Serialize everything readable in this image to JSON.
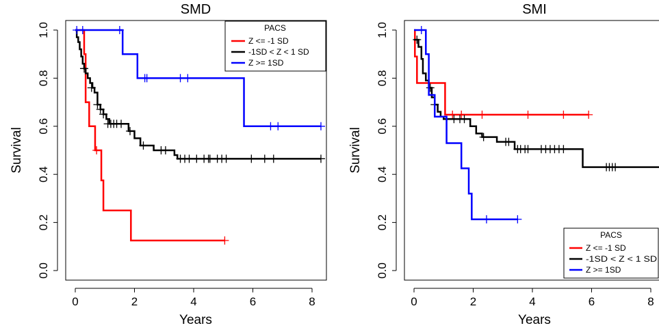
{
  "chart_data": [
    {
      "type": "line",
      "title": "SMD",
      "xlabel": "Years",
      "ylabel": "Survival",
      "xlim": [
        -0.33,
        8.6
      ],
      "ylim": [
        -0.04,
        1.04
      ],
      "xticks": [
        0,
        2,
        4,
        6,
        8
      ],
      "yticks": [
        0.0,
        0.2,
        0.4,
        0.6,
        0.8,
        1.0
      ],
      "xtick_labels": [
        "0",
        "2",
        "4",
        "6",
        "8"
      ],
      "ytick_labels": [
        "0.0",
        "0.2",
        "0.4",
        "0.6",
        "0.8",
        "1.0"
      ],
      "grid": false,
      "legend": {
        "title": "PACS",
        "position": "top-right",
        "entries": [
          "Z <= -1 SD",
          "-1SD < Z < 1 SD",
          "Z >= 1SD"
        ]
      },
      "series": [
        {
          "name": "Z <= -1 SD",
          "color": "#ff0000",
          "steps": [
            [
              0,
              1.0
            ],
            [
              0.3,
              0.9
            ],
            [
              0.35,
              0.7
            ],
            [
              0.47,
              0.6
            ],
            [
              0.67,
              0.5
            ],
            [
              0.88,
              0.375
            ],
            [
              0.95,
              0.25
            ],
            [
              1.88,
              0.125
            ],
            [
              5.05,
              0.125
            ]
          ],
          "censor": [
            [
              0.72,
              0.5
            ],
            [
              5.05,
              0.125
            ]
          ]
        },
        {
          "name": "-1SD < Z < 1 SD",
          "color": "#000000",
          "steps": [
            [
              0,
              1.0
            ],
            [
              0.05,
              0.97
            ],
            [
              0.1,
              0.95
            ],
            [
              0.15,
              0.92
            ],
            [
              0.2,
              0.89
            ],
            [
              0.25,
              0.86
            ],
            [
              0.3,
              0.84
            ],
            [
              0.35,
              0.82
            ],
            [
              0.42,
              0.8
            ],
            [
              0.5,
              0.78
            ],
            [
              0.58,
              0.76
            ],
            [
              0.65,
              0.74
            ],
            [
              0.75,
              0.69
            ],
            [
              0.85,
              0.67
            ],
            [
              0.95,
              0.65
            ],
            [
              1.05,
              0.63
            ],
            [
              1.15,
              0.61
            ],
            [
              1.8,
              0.58
            ],
            [
              2.0,
              0.55
            ],
            [
              2.2,
              0.52
            ],
            [
              2.65,
              0.5
            ],
            [
              3.35,
              0.48
            ],
            [
              3.45,
              0.465
            ],
            [
              8.3,
              0.465
            ]
          ],
          "censor": [
            [
              0.3,
              0.84
            ],
            [
              0.55,
              0.76
            ],
            [
              0.75,
              0.69
            ],
            [
              0.85,
              0.67
            ],
            [
              0.95,
              0.65
            ],
            [
              1.1,
              0.61
            ],
            [
              1.2,
              0.61
            ],
            [
              1.3,
              0.61
            ],
            [
              1.4,
              0.61
            ],
            [
              1.55,
              0.61
            ],
            [
              1.85,
              0.58
            ],
            [
              2.3,
              0.52
            ],
            [
              2.9,
              0.5
            ],
            [
              3.05,
              0.5
            ],
            [
              3.55,
              0.465
            ],
            [
              3.7,
              0.465
            ],
            [
              3.85,
              0.465
            ],
            [
              4.1,
              0.465
            ],
            [
              4.35,
              0.465
            ],
            [
              4.5,
              0.465
            ],
            [
              4.55,
              0.465
            ],
            [
              4.8,
              0.465
            ],
            [
              4.95,
              0.465
            ],
            [
              5.1,
              0.465
            ],
            [
              5.95,
              0.465
            ],
            [
              6.4,
              0.465
            ],
            [
              6.7,
              0.465
            ],
            [
              8.3,
              0.465
            ]
          ]
        },
        {
          "name": "Z >= 1SD",
          "color": "#0000ff",
          "steps": [
            [
              0,
              1.0
            ],
            [
              1.6,
              0.9
            ],
            [
              2.1,
              0.8
            ],
            [
              5.7,
              0.6
            ],
            [
              8.3,
              0.6
            ]
          ],
          "censor": [
            [
              0.05,
              1.0
            ],
            [
              0.25,
              1.0
            ],
            [
              1.5,
              1.0
            ],
            [
              2.35,
              0.8
            ],
            [
              2.42,
              0.8
            ],
            [
              3.55,
              0.8
            ],
            [
              3.8,
              0.8
            ],
            [
              6.6,
              0.6
            ],
            [
              6.85,
              0.6
            ],
            [
              8.3,
              0.6
            ]
          ]
        }
      ]
    },
    {
      "type": "line",
      "title": "SMI",
      "xlabel": "Years",
      "ylabel": "Survival",
      "xlim": [
        -0.33,
        8.6
      ],
      "ylim": [
        -0.04,
        1.04
      ],
      "xticks": [
        0,
        2,
        4,
        6,
        8
      ],
      "yticks": [
        0.0,
        0.2,
        0.4,
        0.6,
        0.8,
        1.0
      ],
      "xtick_labels": [
        "0",
        "2",
        "4",
        "6",
        "8"
      ],
      "ytick_labels": [
        "0.0",
        "0.2",
        "0.4",
        "0.6",
        "0.8",
        "1.0"
      ],
      "grid": false,
      "legend": {
        "title": "PACS",
        "position": "bottom-right",
        "entries": [
          "Z <= -1 SD",
          "-1SD < Z < 1 SD",
          "Z >= 1SD"
        ]
      },
      "series": [
        {
          "name": "Z <= -1 SD",
          "color": "#ff0000",
          "steps": [
            [
              0,
              1.0
            ],
            [
              0.03,
              0.89
            ],
            [
              0.1,
              0.78
            ],
            [
              1.05,
              0.648
            ],
            [
              5.9,
              0.648
            ]
          ],
          "censor": [
            [
              1.3,
              0.648
            ],
            [
              1.6,
              0.648
            ],
            [
              2.3,
              0.648
            ],
            [
              3.85,
              0.648
            ],
            [
              5.05,
              0.648
            ],
            [
              5.9,
              0.648
            ]
          ]
        },
        {
          "name": "-1SD < Z < 1 SD",
          "color": "#000000",
          "steps": [
            [
              0,
              0.96
            ],
            [
              0.15,
              0.93
            ],
            [
              0.25,
              0.88
            ],
            [
              0.3,
              0.82
            ],
            [
              0.4,
              0.79
            ],
            [
              0.5,
              0.76
            ],
            [
              0.6,
              0.72
            ],
            [
              0.7,
              0.69
            ],
            [
              0.8,
              0.66
            ],
            [
              0.9,
              0.64
            ],
            [
              1.0,
              0.63
            ],
            [
              1.9,
              0.6
            ],
            [
              2.1,
              0.57
            ],
            [
              2.3,
              0.555
            ],
            [
              2.8,
              0.535
            ],
            [
              3.4,
              0.505
            ],
            [
              5.7,
              0.43
            ],
            [
              8.4,
              0.43
            ]
          ],
          "censor": [
            [
              0.1,
              0.96
            ],
            [
              0.55,
              0.76
            ],
            [
              0.7,
              0.69
            ],
            [
              1.35,
              0.63
            ],
            [
              1.55,
              0.63
            ],
            [
              1.7,
              0.63
            ],
            [
              2.35,
              0.555
            ],
            [
              3.1,
              0.535
            ],
            [
              3.2,
              0.535
            ],
            [
              3.5,
              0.505
            ],
            [
              3.6,
              0.505
            ],
            [
              3.75,
              0.505
            ],
            [
              3.85,
              0.505
            ],
            [
              4.3,
              0.505
            ],
            [
              4.45,
              0.505
            ],
            [
              4.6,
              0.505
            ],
            [
              4.75,
              0.505
            ],
            [
              4.9,
              0.505
            ],
            [
              5.05,
              0.505
            ],
            [
              6.5,
              0.43
            ],
            [
              6.6,
              0.43
            ],
            [
              6.7,
              0.43
            ],
            [
              6.8,
              0.43
            ],
            [
              8.4,
              0.43
            ]
          ]
        },
        {
          "name": "Z >= 1SD",
          "color": "#0000ff",
          "steps": [
            [
              0,
              1.0
            ],
            [
              0.4,
              0.9
            ],
            [
              0.5,
              0.73
            ],
            [
              0.7,
              0.64
            ],
            [
              1.1,
              0.53
            ],
            [
              1.6,
              0.425
            ],
            [
              1.85,
              0.32
            ],
            [
              1.95,
              0.213
            ],
            [
              3.5,
              0.213
            ]
          ],
          "censor": [
            [
              0.25,
              1.0
            ],
            [
              2.45,
              0.213
            ],
            [
              3.5,
              0.213
            ]
          ]
        }
      ]
    }
  ]
}
